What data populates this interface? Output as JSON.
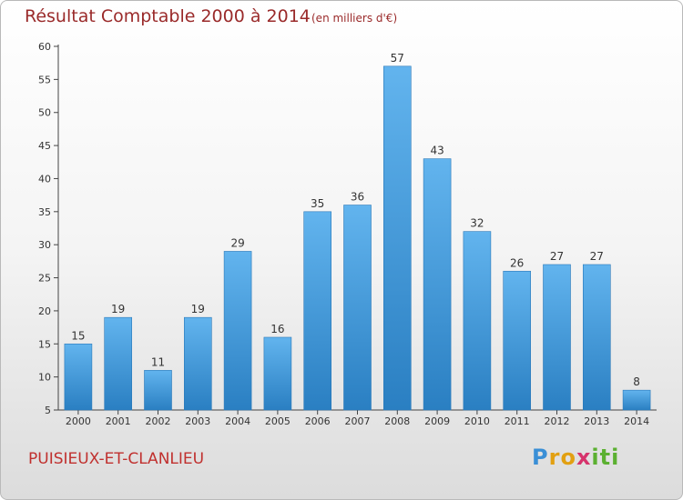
{
  "header": {
    "title": "Résultat Comptable 2000 à 2014",
    "subtitle": "(en milliers d'€)"
  },
  "footer": {
    "commune": "PUISIEUX-ET-CLANLIEU",
    "logo": "Proxiti",
    "logo_letters": [
      "P",
      "r",
      "o",
      "x",
      "i",
      "ti"
    ]
  },
  "colors": {
    "bar_light": "#62b4ee",
    "bar_dark": "#2a7fc2",
    "title": "#9a2a2a",
    "commune": "#c0302e"
  },
  "chart_data": {
    "type": "bar",
    "title": "Résultat Comptable 2000 à 2014",
    "subtitle": "(en milliers d'€)",
    "xlabel": "",
    "ylabel": "",
    "categories": [
      "2000",
      "2001",
      "2002",
      "2003",
      "2004",
      "2005",
      "2006",
      "2007",
      "2008",
      "2009",
      "2010",
      "2011",
      "2012",
      "2013",
      "2014"
    ],
    "values": [
      15,
      19,
      11,
      19,
      29,
      16,
      35,
      36,
      57,
      43,
      32,
      26,
      27,
      27,
      8
    ],
    "ylim": [
      5,
      60
    ],
    "yticks": [
      5,
      10,
      15,
      20,
      25,
      30,
      35,
      40,
      45,
      50,
      55,
      60
    ],
    "grid": false,
    "legend": "none"
  }
}
